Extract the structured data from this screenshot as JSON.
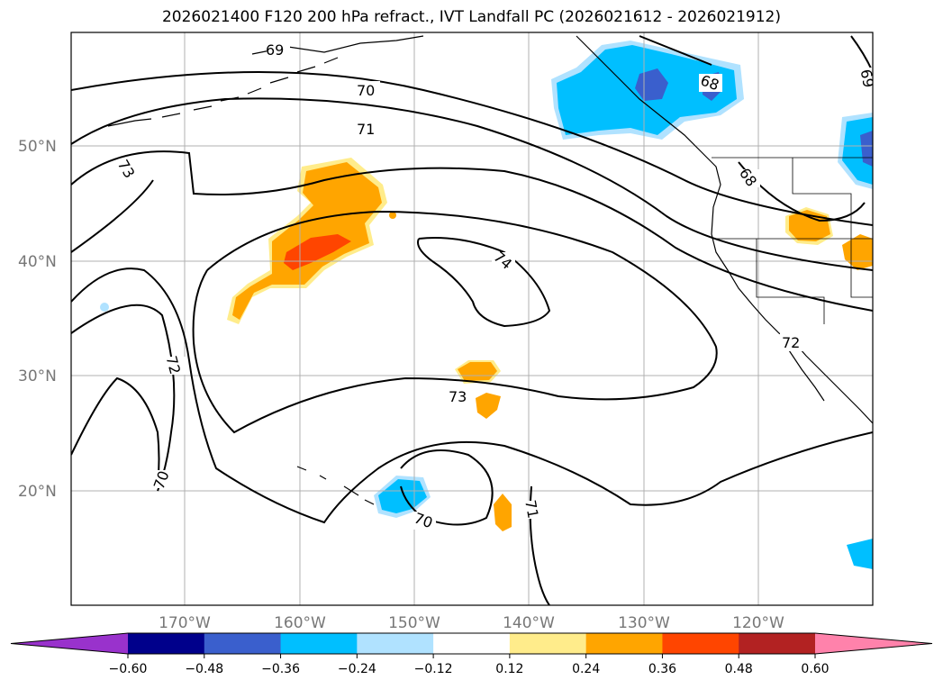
{
  "title": "2026021400 F120 200 hPa refract., IVT Landfall PC (2026021612 - 2026021912)",
  "lat_labels": [
    "50°N",
    "40°N",
    "30°N",
    "20°N"
  ],
  "lon_labels": [
    "170°W",
    "160°W",
    "150°W",
    "140°W",
    "130°W",
    "120°W"
  ],
  "contour_labels": [
    "69",
    "70",
    "71",
    "73",
    "74",
    "72",
    "73",
    "70",
    "71",
    "72",
    "68",
    "68",
    "69",
    "70"
  ],
  "colorbar": {
    "ticks": [
      "−0.60",
      "−0.48",
      "−0.36",
      "−0.24",
      "−0.12",
      "0.12",
      "0.24",
      "0.36",
      "0.48",
      "0.60"
    ],
    "colors": [
      "#9932cc",
      "#00008b",
      "#3a5fcd",
      "#00bfff",
      "#b0e2ff",
      "#ffffff",
      "#ffec8b",
      "#ffa500",
      "#ff4500",
      "#b22222",
      "#ff82ab"
    ]
  }
}
